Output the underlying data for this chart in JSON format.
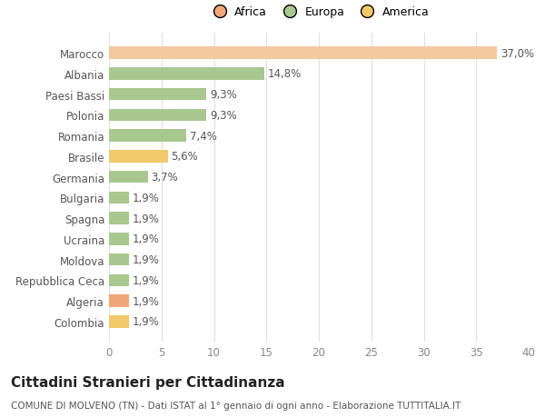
{
  "categories": [
    "Colombia",
    "Algeria",
    "Repubblica Ceca",
    "Moldova",
    "Ucraina",
    "Spagna",
    "Bulgaria",
    "Germania",
    "Brasile",
    "Romania",
    "Polonia",
    "Paesi Bassi",
    "Albania",
    "Marocco"
  ],
  "values": [
    1.9,
    1.9,
    1.9,
    1.9,
    1.9,
    1.9,
    1.9,
    3.7,
    5.6,
    7.4,
    9.3,
    9.3,
    14.8,
    37.0
  ],
  "labels": [
    "1,9%",
    "1,9%",
    "1,9%",
    "1,9%",
    "1,9%",
    "1,9%",
    "1,9%",
    "3,7%",
    "5,6%",
    "7,4%",
    "9,3%",
    "9,3%",
    "14,8%",
    "37,0%"
  ],
  "colors": [
    "#F2C96A",
    "#F0A878",
    "#A8C890",
    "#A8C890",
    "#A8C890",
    "#A8C890",
    "#A8C890",
    "#A8C890",
    "#F2C96A",
    "#A8C890",
    "#A8C890",
    "#A8C890",
    "#A8C890",
    "#F5C9A0"
  ],
  "continent": [
    "America",
    "Africa",
    "Europa",
    "Europa",
    "Europa",
    "Europa",
    "Europa",
    "Europa",
    "America",
    "Europa",
    "Europa",
    "Europa",
    "Europa",
    "Africa"
  ],
  "legend_labels": [
    "Africa",
    "Europa",
    "America"
  ],
  "legend_colors": [
    "#F0A878",
    "#A8C890",
    "#F2C96A"
  ],
  "title": "Cittadini Stranieri per Cittadinanza",
  "subtitle": "COMUNE DI MOLVENO (TN) - Dati ISTAT al 1° gennaio di ogni anno - Elaborazione TUTTITALIA.IT",
  "xlim": [
    0,
    40
  ],
  "xticks": [
    0,
    5,
    10,
    15,
    20,
    25,
    30,
    35,
    40
  ],
  "background_color": "#ffffff",
  "grid_color": "#e0e0e0",
  "bar_height": 0.6,
  "label_fontsize": 8.5,
  "tick_fontsize": 8.5,
  "title_fontsize": 11,
  "subtitle_fontsize": 7.5
}
